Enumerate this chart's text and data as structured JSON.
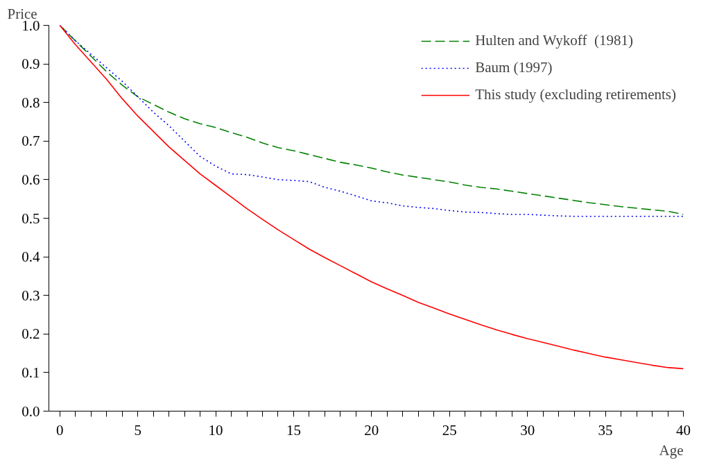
{
  "chart_data": {
    "type": "line",
    "xlabel": "Age",
    "ylabel": "Price",
    "x": [
      0,
      1,
      2,
      3,
      4,
      5,
      6,
      7,
      8,
      9,
      10,
      11,
      12,
      13,
      14,
      15,
      16,
      17,
      18,
      19,
      20,
      21,
      22,
      23,
      24,
      25,
      26,
      27,
      28,
      29,
      30,
      31,
      32,
      33,
      34,
      35,
      36,
      37,
      38,
      39,
      40
    ],
    "series": [
      {
        "name": "Hulten and Wykoff  (1981)",
        "color": "#008000",
        "line_style": "dashed",
        "values": [
          1,
          0.96,
          0.92,
          0.88,
          0.845,
          0.815,
          0.795,
          0.775,
          0.758,
          0.745,
          0.735,
          0.722,
          0.71,
          0.695,
          0.683,
          0.675,
          0.665,
          0.655,
          0.645,
          0.638,
          0.63,
          0.62,
          0.612,
          0.606,
          0.6,
          0.594,
          0.586,
          0.58,
          0.576,
          0.57,
          0.564,
          0.558,
          0.552,
          0.546,
          0.54,
          0.535,
          0.53,
          0.526,
          0.522,
          0.518,
          0.51
        ]
      },
      {
        "name": "Baum (1997)",
        "color": "#0000ff",
        "line_style": "dotted",
        "values": [
          1,
          0.96,
          0.925,
          0.89,
          0.855,
          0.815,
          0.775,
          0.74,
          0.7,
          0.66,
          0.635,
          0.615,
          0.613,
          0.607,
          0.6,
          0.598,
          0.595,
          0.58,
          0.57,
          0.558,
          0.545,
          0.54,
          0.532,
          0.528,
          0.525,
          0.52,
          0.516,
          0.515,
          0.512,
          0.51,
          0.51,
          0.508,
          0.506,
          0.505,
          0.505,
          0.505,
          0.505,
          0.505,
          0.505,
          0.505,
          0.505
        ]
      },
      {
        "name": "This study (excluding retirements)",
        "color": "#ff0000",
        "line_style": "solid",
        "values": [
          1,
          0.95,
          0.905,
          0.86,
          0.81,
          0.765,
          0.725,
          0.685,
          0.65,
          0.615,
          0.585,
          0.555,
          0.525,
          0.497,
          0.47,
          0.445,
          0.42,
          0.398,
          0.377,
          0.356,
          0.335,
          0.317,
          0.3,
          0.282,
          0.267,
          0.252,
          0.238,
          0.224,
          0.211,
          0.199,
          0.188,
          0.178,
          0.168,
          0.158,
          0.149,
          0.14,
          0.133,
          0.126,
          0.119,
          0.113,
          0.11
        ]
      }
    ],
    "xlim": [
      -0.7,
      40
    ],
    "xticks": [
      0,
      {
        "value": 1,
        "label": null
      },
      {
        "value": 2,
        "label": null
      },
      {
        "value": 3,
        "label": null
      },
      {
        "value": 4,
        "label": null
      },
      5,
      {
        "value": 6,
        "label": null
      },
      {
        "value": 7,
        "label": null
      },
      {
        "value": 8,
        "label": null
      },
      {
        "value": 9,
        "label": null
      },
      10,
      {
        "value": 11,
        "label": null
      },
      {
        "value": 12,
        "label": null
      },
      {
        "value": 13,
        "label": null
      },
      {
        "value": 14,
        "label": null
      },
      15,
      {
        "value": 16,
        "label": null
      },
      {
        "value": 17,
        "label": null
      },
      {
        "value": 18,
        "label": null
      },
      {
        "value": 19,
        "label": null
      },
      20,
      {
        "value": 21,
        "label": null
      },
      {
        "value": 22,
        "label": null
      },
      {
        "value": 23,
        "label": null
      },
      {
        "value": 24,
        "label": null
      },
      25,
      {
        "value": 26,
        "label": null
      },
      {
        "value": 27,
        "label": null
      },
      {
        "value": 28,
        "label": null
      },
      {
        "value": 29,
        "label": null
      },
      30,
      {
        "value": 31,
        "label": null
      },
      {
        "value": 32,
        "label": null
      },
      {
        "value": 33,
        "label": null
      },
      {
        "value": 34,
        "label": null
      },
      35,
      {
        "value": 36,
        "label": null
      },
      {
        "value": 37,
        "label": null
      },
      {
        "value": 38,
        "label": null
      },
      {
        "value": 39,
        "label": null
      },
      40
    ],
    "ylim": [
      0,
      1
    ],
    "yticks": [
      {
        "value": 0,
        "label": "0.0"
      },
      0.1,
      0.2,
      0.3,
      0.4,
      0.5,
      0.6,
      0.7,
      0.8,
      0.9,
      {
        "value": 1,
        "label": "1.0"
      }
    ],
    "grid": false,
    "legend": "top right",
    "marker": "none"
  }
}
